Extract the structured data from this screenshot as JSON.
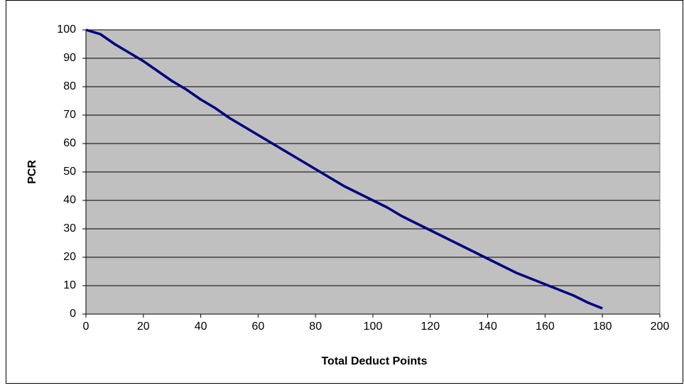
{
  "chart_data": {
    "type": "line",
    "x_label": "Total Deduct Points",
    "y_label": "PCR",
    "x": [
      0,
      5,
      10,
      15,
      20,
      25,
      30,
      35,
      40,
      45,
      50,
      55,
      60,
      65,
      70,
      75,
      80,
      85,
      90,
      95,
      100,
      105,
      110,
      115,
      120,
      125,
      130,
      135,
      140,
      145,
      150,
      155,
      160,
      165,
      170,
      175,
      180
    ],
    "series": [
      {
        "name": "PCR",
        "color": "#000080",
        "values": [
          100,
          98.5,
          95,
          92,
          89,
          85.5,
          82,
          79,
          75.5,
          72.5,
          69,
          66,
          63,
          60,
          57,
          54,
          51,
          48,
          45,
          42.5,
          40,
          37.5,
          34.5,
          32,
          29.5,
          27,
          24.5,
          22,
          19.5,
          17,
          14.5,
          12.5,
          10.5,
          8.5,
          6.5,
          4,
          2
        ]
      }
    ],
    "xlim": [
      0,
      200
    ],
    "xticks": [
      0,
      20,
      40,
      60,
      80,
      100,
      120,
      140,
      160,
      180,
      200
    ],
    "ylim": [
      0,
      100
    ],
    "yticks": [
      0,
      10,
      20,
      30,
      40,
      50,
      60,
      70,
      80,
      90,
      100
    ],
    "grid": true,
    "plot_background": "#c0c0c0"
  }
}
